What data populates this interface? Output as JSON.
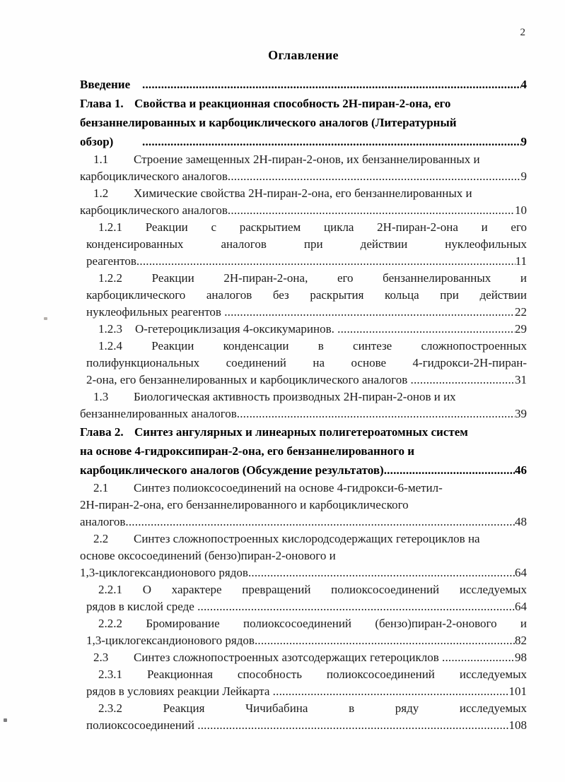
{
  "page": {
    "number": "2"
  },
  "toc": {
    "title": "Оглавление",
    "lines": [
      {
        "text": "Введение",
        "page": "4"
      },
      {
        "num": "Глава 1.",
        "text": "Свойства и реакционная способность 2Н-пиран-2-она, его"
      },
      {
        "text": "бензаннелированных и карбоциклического аналогов (Литературный"
      },
      {
        "text": "обзор)",
        "page": "9"
      },
      {
        "num": "1.1",
        "text": "Строение замещенных 2Н-пиран-2-онов, их бензаннелированных и"
      },
      {
        "text": "карбоциклического аналогов",
        "page": "9"
      },
      {
        "num": "1.2",
        "text": "Химические свойства 2Н-пиран-2-она, его бензаннелированных и"
      },
      {
        "text": "карбоциклического аналогов",
        "page": "10"
      },
      {
        "text": "1.2.1 Реакции с раскрытием цикла 2Н-пиран-2-она и его"
      },
      {
        "text": "конденсированных аналогов при действии нуклеофильных"
      },
      {
        "text": "реагентов",
        "page": "11"
      },
      {
        "text": "1.2.2 Реакции 2Н-пиран-2-она, его бензаннелированных и"
      },
      {
        "text": "карбоциклического аналогов без раскрытия кольца при действии"
      },
      {
        "text": "нуклеофильных реагентов ",
        "page": "22"
      },
      {
        "num": "1.2.3",
        "text": "О-гетероциклизация 4-оксикумаринов. ",
        "page": "29"
      },
      {
        "text": "1.2.4 Реакции конденсации в синтезе сложнопостроенных"
      },
      {
        "text": "полифункциональных соединений на основе 4-гидрокси-2Н-пиран-"
      },
      {
        "text": "2-она, его бензаннелированных и карбоциклического аналогов ",
        "page": "31"
      },
      {
        "num": "1.3",
        "text": "Биологическая активность производных 2Н-пиран-2-онов и их"
      },
      {
        "text": "бензаннелированных аналогов",
        "page": "39"
      },
      {
        "num": "Глава 2.",
        "text": "Синтез ангулярных и линеарных полигетероатомных систем"
      },
      {
        "text": "на основе 4-гидроксипиран-2-она, его бензаннелированного и"
      },
      {
        "text": "карбоциклического аналогов (Обсуждение результатов)",
        "page": "46"
      },
      {
        "num": "2.1",
        "text": "Синтез полиоксосоединений на основе 4-гидрокси-6-метил-"
      },
      {
        "text": "2Н-пиран-2-она, его бензаннелированного и карбоциклического"
      },
      {
        "text": "аналогов",
        "page": "48"
      },
      {
        "num": "2.2",
        "text": "Синтез сложнопостроенных кислородсодержащих гетероциклов на"
      },
      {
        "text": "основе оксосоединений (бензо)пиран-2-онового и"
      },
      {
        "text": "1,3-циклогександионового рядов",
        "page": "64"
      },
      {
        "text": "2.2.1 О характере превращений полиоксосоединений исследуемых"
      },
      {
        "text": "рядов в кислой среде ",
        "page": "64"
      },
      {
        "text": "2.2.2 Бромирование полиоксосоединений (бензо)пиран-2-онового и"
      },
      {
        "text": "1,3-циклогександионового рядов",
        "page": "82"
      },
      {
        "num": "2.3",
        "text": "Синтез сложнопостроенных азотсодержащих гетероциклов ",
        "page": "98"
      },
      {
        "text": "2.3.1 Реакционная способность полиоксосоединений исследуемых"
      },
      {
        "text": "рядов в условиях реакции Лейкарта ",
        "page": "101"
      },
      {
        "text": "2.3.2 Реакция Чичибабина в ряду исследуемых"
      },
      {
        "text": "полиоксосоединений ",
        "page": "108"
      }
    ]
  }
}
